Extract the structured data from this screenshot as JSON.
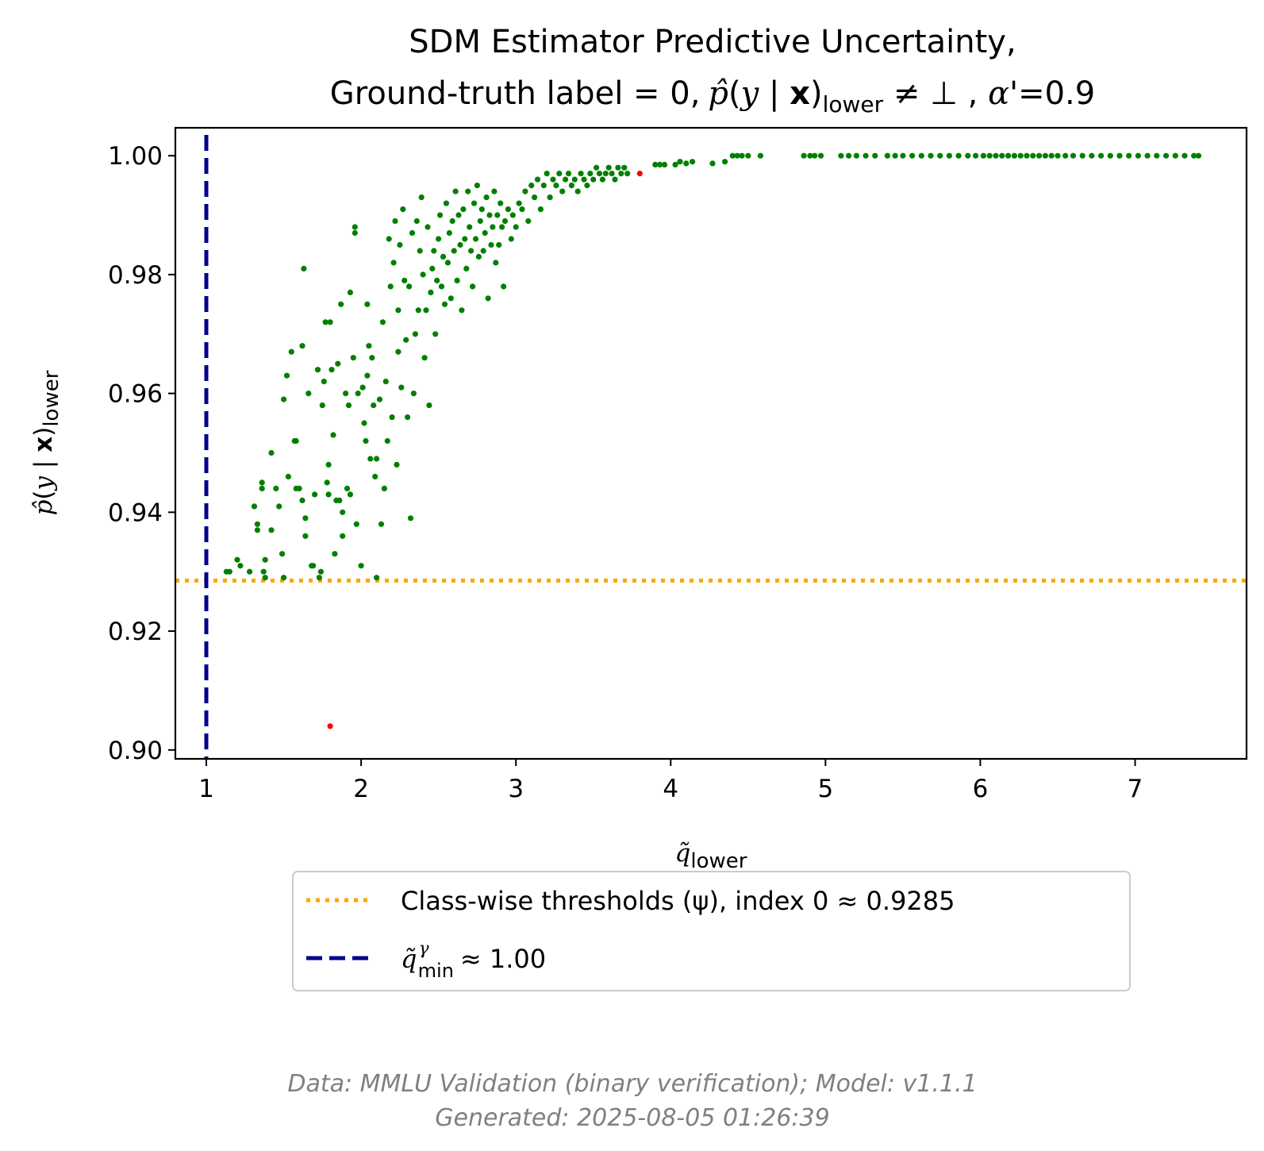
{
  "chart_data": {
    "type": "scatter",
    "title_line1": "SDM Estimator Predictive Uncertainty,",
    "title_line2_prefix": "Ground-truth label = 0,",
    "title_line2_suffix": "'=0.9",
    "xlabel": "q̃lower",
    "ylabel": "p̂(y | x)lower",
    "xlim": [
      0.8,
      7.72
    ],
    "ylim": [
      0.8985,
      1.0047
    ],
    "x_ticks": [
      "1",
      "2",
      "3",
      "4",
      "5",
      "6",
      "7"
    ],
    "y_ticks": [
      "0.90",
      "0.92",
      "0.94",
      "0.96",
      "0.98",
      "1.00"
    ],
    "grid": false,
    "legend_position": "below the plot",
    "colors": {
      "correct": "#008000",
      "incorrect": "#ff0000",
      "threshold": "#ffa500",
      "qmin": "#00008b",
      "footer": "#808080"
    },
    "threshold_line": {
      "value": 0.9285,
      "label": "Class-wise thresholds (ψ), index 0 ≈ 0.9285"
    },
    "qmin_line": {
      "value": 1.0,
      "label": "q̃ min γ ≈ 1.00"
    },
    "legend": {
      "threshold_text": "Class-wise thresholds (ψ), index 0 ≈ 0.9285",
      "qmin_value_text": "≈ 1.00"
    },
    "footer_line1": "Data: MMLU Validation (binary verification); Model: v1.1.1",
    "footer_line2": "Generated: 2025-08-05 01:26:39",
    "series": [
      {
        "color": "#008000",
        "points": [
          [
            1.13,
            0.93
          ],
          [
            1.15,
            0.93
          ],
          [
            1.2,
            0.932
          ],
          [
            1.22,
            0.931
          ],
          [
            1.28,
            0.93
          ],
          [
            1.37,
            0.93
          ],
          [
            1.38,
            0.929
          ],
          [
            1.5,
            0.929
          ],
          [
            1.31,
            0.941
          ],
          [
            1.33,
            0.938
          ],
          [
            1.33,
            0.937
          ],
          [
            1.36,
            0.945
          ],
          [
            1.36,
            0.944
          ],
          [
            1.38,
            0.932
          ],
          [
            1.42,
            0.95
          ],
          [
            1.42,
            0.937
          ],
          [
            1.45,
            0.944
          ],
          [
            1.47,
            0.941
          ],
          [
            1.49,
            0.933
          ],
          [
            1.5,
            0.959
          ],
          [
            1.52,
            0.963
          ],
          [
            1.53,
            0.946
          ],
          [
            1.55,
            0.967
          ],
          [
            1.57,
            0.952
          ],
          [
            1.58,
            0.952
          ],
          [
            1.58,
            0.944
          ],
          [
            1.6,
            0.944
          ],
          [
            1.62,
            0.968
          ],
          [
            1.62,
            0.942
          ],
          [
            1.63,
            0.981
          ],
          [
            1.64,
            0.936
          ],
          [
            1.64,
            0.939
          ],
          [
            1.66,
            0.96
          ],
          [
            1.68,
            0.931
          ],
          [
            1.69,
            0.931
          ],
          [
            1.7,
            0.943
          ],
          [
            1.72,
            0.964
          ],
          [
            1.73,
            0.929
          ],
          [
            1.74,
            0.93
          ],
          [
            1.75,
            0.958
          ],
          [
            1.76,
            0.962
          ],
          [
            1.77,
            0.972
          ],
          [
            1.78,
            0.945
          ],
          [
            1.79,
            0.948
          ],
          [
            1.79,
            0.943
          ],
          [
            1.8,
            0.972
          ],
          [
            1.81,
            0.964
          ],
          [
            1.82,
            0.953
          ],
          [
            1.83,
            0.933
          ],
          [
            1.84,
            0.942
          ],
          [
            1.85,
            0.965
          ],
          [
            1.86,
            0.942
          ],
          [
            1.87,
            0.975
          ],
          [
            1.88,
            0.936
          ],
          [
            1.88,
            0.94
          ],
          [
            1.9,
            0.96
          ],
          [
            1.91,
            0.944
          ],
          [
            1.92,
            0.958
          ],
          [
            1.93,
            0.943
          ],
          [
            1.93,
            0.977
          ],
          [
            1.95,
            0.966
          ],
          [
            1.96,
            0.988
          ],
          [
            1.96,
            0.987
          ],
          [
            1.97,
            0.938
          ],
          [
            1.98,
            0.96
          ],
          [
            2.0,
            0.931
          ],
          [
            2.01,
            0.961
          ],
          [
            2.02,
            0.955
          ],
          [
            2.03,
            0.952
          ],
          [
            2.04,
            0.975
          ],
          [
            2.04,
            0.963
          ],
          [
            2.05,
            0.968
          ],
          [
            2.06,
            0.949
          ],
          [
            2.07,
            0.966
          ],
          [
            2.08,
            0.958
          ],
          [
            2.09,
            0.946
          ],
          [
            2.1,
            0.929
          ],
          [
            2.1,
            0.949
          ],
          [
            2.12,
            0.959
          ],
          [
            2.13,
            0.938
          ],
          [
            2.14,
            0.972
          ],
          [
            2.15,
            0.944
          ],
          [
            2.16,
            0.962
          ],
          [
            2.17,
            0.952
          ],
          [
            2.18,
            0.986
          ],
          [
            2.19,
            0.978
          ],
          [
            2.2,
            0.956
          ],
          [
            2.21,
            0.982
          ],
          [
            2.22,
            0.989
          ],
          [
            2.23,
            0.948
          ],
          [
            2.24,
            0.967
          ],
          [
            2.24,
            0.974
          ],
          [
            2.25,
            0.985
          ],
          [
            2.26,
            0.961
          ],
          [
            2.27,
            0.991
          ],
          [
            2.28,
            0.979
          ],
          [
            2.29,
            0.969
          ],
          [
            2.3,
            0.956
          ],
          [
            2.31,
            0.978
          ],
          [
            2.32,
            0.939
          ],
          [
            2.33,
            0.987
          ],
          [
            2.34,
            0.96
          ],
          [
            2.35,
            0.97
          ],
          [
            2.36,
            0.989
          ],
          [
            2.37,
            0.974
          ],
          [
            2.38,
            0.984
          ],
          [
            2.39,
            0.993
          ],
          [
            2.4,
            0.98
          ],
          [
            2.41,
            0.966
          ],
          [
            2.42,
            0.974
          ],
          [
            2.43,
            0.988
          ],
          [
            2.44,
            0.958
          ],
          [
            2.45,
            0.977
          ],
          [
            2.46,
            0.981
          ],
          [
            2.47,
            0.984
          ],
          [
            2.48,
            0.97
          ],
          [
            2.49,
            0.979
          ],
          [
            2.5,
            0.986
          ],
          [
            2.51,
            0.99
          ],
          [
            2.52,
            0.978
          ],
          [
            2.53,
            0.983
          ],
          [
            2.54,
            0.975
          ],
          [
            2.55,
            0.992
          ],
          [
            2.56,
            0.982
          ],
          [
            2.57,
            0.987
          ],
          [
            2.58,
            0.976
          ],
          [
            2.59,
            0.989
          ],
          [
            2.6,
            0.984
          ],
          [
            2.61,
            0.994
          ],
          [
            2.62,
            0.979
          ],
          [
            2.63,
            0.99
          ],
          [
            2.64,
            0.985
          ],
          [
            2.65,
            0.974
          ],
          [
            2.66,
            0.991
          ],
          [
            2.67,
            0.986
          ],
          [
            2.68,
            0.981
          ],
          [
            2.69,
            0.994
          ],
          [
            2.7,
            0.988
          ],
          [
            2.71,
            0.984
          ],
          [
            2.72,
            0.978
          ],
          [
            2.73,
            0.992
          ],
          [
            2.74,
            0.986
          ],
          [
            2.75,
            0.995
          ],
          [
            2.76,
            0.983
          ],
          [
            2.77,
            0.989
          ],
          [
            2.78,
            0.991
          ],
          [
            2.79,
            0.984
          ],
          [
            2.8,
            0.987
          ],
          [
            2.81,
            0.993
          ],
          [
            2.82,
            0.976
          ],
          [
            2.83,
            0.99
          ],
          [
            2.84,
            0.985
          ],
          [
            2.85,
            0.988
          ],
          [
            2.86,
            0.994
          ],
          [
            2.87,
            0.982
          ],
          [
            2.88,
            0.99
          ],
          [
            2.89,
            0.985
          ],
          [
            2.9,
            0.992
          ],
          [
            2.91,
            0.988
          ],
          [
            2.92,
            0.978
          ],
          [
            2.93,
            0.989
          ],
          [
            2.95,
            0.991
          ],
          [
            2.97,
            0.986
          ],
          [
            2.98,
            0.99
          ],
          [
            3.0,
            0.988
          ],
          [
            3.02,
            0.992
          ],
          [
            3.04,
            0.991
          ],
          [
            3.06,
            0.994
          ],
          [
            3.08,
            0.989
          ],
          [
            3.1,
            0.995
          ],
          [
            3.12,
            0.993
          ],
          [
            3.14,
            0.996
          ],
          [
            3.16,
            0.991
          ],
          [
            3.18,
            0.995
          ],
          [
            3.2,
            0.997
          ],
          [
            3.22,
            0.993
          ],
          [
            3.24,
            0.996
          ],
          [
            3.26,
            0.995
          ],
          [
            3.28,
            0.997
          ],
          [
            3.3,
            0.994
          ],
          [
            3.32,
            0.996
          ],
          [
            3.34,
            0.997
          ],
          [
            3.36,
            0.995
          ],
          [
            3.38,
            0.996
          ],
          [
            3.4,
            0.994
          ],
          [
            3.42,
            0.997
          ],
          [
            3.44,
            0.996
          ],
          [
            3.46,
            0.995
          ],
          [
            3.48,
            0.997
          ],
          [
            3.5,
            0.996
          ],
          [
            3.52,
            0.998
          ],
          [
            3.54,
            0.997
          ],
          [
            3.56,
            0.996
          ],
          [
            3.58,
            0.997
          ],
          [
            3.6,
            0.998
          ],
          [
            3.62,
            0.997
          ],
          [
            3.64,
            0.996
          ],
          [
            3.66,
            0.998
          ],
          [
            3.68,
            0.997
          ],
          [
            3.7,
            0.998
          ],
          [
            3.72,
            0.997
          ],
          [
            3.9,
            0.9985
          ],
          [
            3.93,
            0.9985
          ],
          [
            3.96,
            0.9985
          ],
          [
            4.03,
            0.9985
          ],
          [
            4.06,
            0.999
          ],
          [
            4.1,
            0.9987
          ],
          [
            4.14,
            0.999
          ],
          [
            4.27,
            0.9987
          ],
          [
            4.35,
            0.999
          ],
          [
            4.4,
            1.0
          ],
          [
            4.43,
            1.0
          ],
          [
            4.46,
            1.0
          ],
          [
            4.5,
            1.0
          ],
          [
            4.58,
            1.0
          ],
          [
            4.86,
            1.0
          ],
          [
            4.9,
            1.0
          ],
          [
            4.93,
            1.0
          ],
          [
            4.97,
            1.0
          ],
          [
            5.1,
            1.0
          ],
          [
            5.15,
            1.0
          ],
          [
            5.2,
            1.0
          ],
          [
            5.26,
            1.0
          ],
          [
            5.32,
            1.0
          ],
          [
            5.4,
            1.0
          ],
          [
            5.45,
            1.0
          ],
          [
            5.5,
            1.0
          ],
          [
            5.56,
            1.0
          ],
          [
            5.62,
            1.0
          ],
          [
            5.68,
            1.0
          ],
          [
            5.74,
            1.0
          ],
          [
            5.8,
            1.0
          ],
          [
            5.86,
            1.0
          ],
          [
            5.92,
            1.0
          ],
          [
            5.97,
            1.0
          ],
          [
            6.02,
            1.0
          ],
          [
            6.06,
            1.0
          ],
          [
            6.1,
            1.0
          ],
          [
            6.14,
            1.0
          ],
          [
            6.18,
            1.0
          ],
          [
            6.22,
            1.0
          ],
          [
            6.26,
            1.0
          ],
          [
            6.3,
            1.0
          ],
          [
            6.34,
            1.0
          ],
          [
            6.38,
            1.0
          ],
          [
            6.42,
            1.0
          ],
          [
            6.46,
            1.0
          ],
          [
            6.5,
            1.0
          ],
          [
            6.55,
            1.0
          ],
          [
            6.6,
            1.0
          ],
          [
            6.66,
            1.0
          ],
          [
            6.72,
            1.0
          ],
          [
            6.78,
            1.0
          ],
          [
            6.84,
            1.0
          ],
          [
            6.9,
            1.0
          ],
          [
            6.96,
            1.0
          ],
          [
            7.02,
            1.0
          ],
          [
            7.08,
            1.0
          ],
          [
            7.14,
            1.0
          ],
          [
            7.2,
            1.0
          ],
          [
            7.26,
            1.0
          ],
          [
            7.32,
            1.0
          ],
          [
            7.38,
            1.0
          ],
          [
            7.41,
            1.0
          ]
        ]
      },
      {
        "color": "#ff0000",
        "points": [
          [
            3.8,
            0.997
          ],
          [
            1.8,
            0.904
          ]
        ]
      }
    ]
  }
}
